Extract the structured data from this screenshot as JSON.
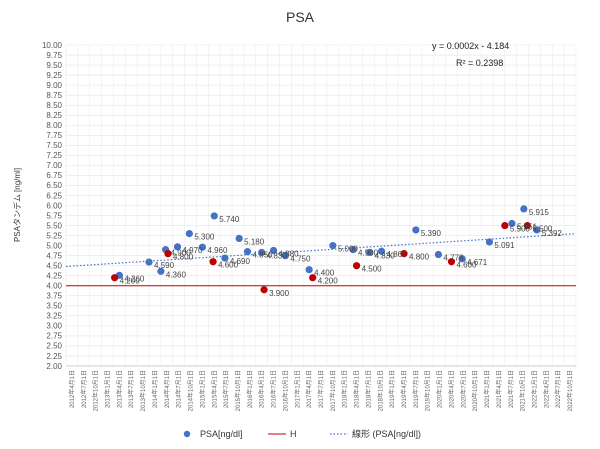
{
  "chart_data": {
    "type": "scatter",
    "title": "PSA",
    "ylabel": "PSAタンデム [ng/ml]",
    "xlabel": "",
    "ylim": [
      2.0,
      10.0
    ],
    "ytick_step": 0.25,
    "x_categories": [
      "2012年4月1日",
      "2012年7月1日",
      "2012年10月1日",
      "2013年1月1日",
      "2013年4月1日",
      "2013年7月1日",
      "2013年10月1日",
      "2014年1月1日",
      "2014年4月1日",
      "2014年7月1日",
      "2014年10月1日",
      "2015年1月1日",
      "2015年4月1日",
      "2015年7月1日",
      "2015年10月1日",
      "2016年1月1日",
      "2016年4月1日",
      "2016年7月1日",
      "2016年10月1日",
      "2017年1月1日",
      "2017年4月1日",
      "2017年7月1日",
      "2017年10月1日",
      "2018年1月1日",
      "2018年4月1日",
      "2018年7月1日",
      "2018年10月1日",
      "2019年1月1日",
      "2019年4月1日",
      "2019年7月1日",
      "2019年10月1日",
      "2020年1月1日",
      "2020年4月1日",
      "2020年7月1日",
      "2020年10月1日",
      "2021年1月1日",
      "2021年4月1日",
      "2021年7月1日",
      "2021年10月1日",
      "2022年1月1日",
      "2022年4月1日",
      "2022年7月1日",
      "2022年10月1日"
    ],
    "series": [
      {
        "name": "PSA[ng/dl]",
        "color": "#4472C4",
        "points": [
          {
            "x": 4.0,
            "y": 4.26,
            "label": "4.260"
          },
          {
            "x": 6.5,
            "y": 4.59,
            "label": "4.590"
          },
          {
            "x": 7.5,
            "y": 4.36,
            "label": "4.360"
          },
          {
            "x": 7.9,
            "y": 4.9,
            "label": "4.900"
          },
          {
            "x": 8.9,
            "y": 4.97,
            "label": "4.970"
          },
          {
            "x": 9.9,
            "y": 5.3,
            "label": "5.300"
          },
          {
            "x": 11.0,
            "y": 4.96,
            "label": "4.960"
          },
          {
            "x": 12.0,
            "y": 5.74,
            "label": "5.740"
          },
          {
            "x": 12.9,
            "y": 4.69,
            "label": "4.690"
          },
          {
            "x": 14.1,
            "y": 5.18,
            "label": "5.180"
          },
          {
            "x": 14.8,
            "y": 4.85,
            "label": "4.850"
          },
          {
            "x": 16.0,
            "y": 4.83,
            "label": "4.830"
          },
          {
            "x": 17.0,
            "y": 4.88,
            "label": "4.880"
          },
          {
            "x": 18.0,
            "y": 4.75,
            "label": "4.750"
          },
          {
            "x": 20.0,
            "y": 4.4,
            "label": "4.400"
          },
          {
            "x": 22.0,
            "y": 5.0,
            "label": "5.000"
          },
          {
            "x": 23.7,
            "y": 4.9,
            "label": "4.900"
          },
          {
            "x": 25.1,
            "y": 4.83,
            "label": "4.830"
          },
          {
            "x": 26.1,
            "y": 4.86,
            "label": "4.860"
          },
          {
            "x": 29.0,
            "y": 5.39,
            "label": "5.390"
          },
          {
            "x": 30.9,
            "y": 4.778,
            "label": "4.778"
          },
          {
            "x": 32.9,
            "y": 4.671,
            "label": "4.671"
          },
          {
            "x": 35.2,
            "y": 5.091,
            "label": "5.091"
          },
          {
            "x": 37.1,
            "y": 5.551,
            "label": "5.551"
          },
          {
            "x": 38.1,
            "y": 5.915,
            "label": "5.915"
          },
          {
            "x": 39.2,
            "y": 5.392,
            "label": "5.392"
          }
        ]
      },
      {
        "name": "H",
        "color": "#C00000",
        "points": [
          {
            "x": 3.6,
            "y": 4.2,
            "label": "4.200"
          },
          {
            "x": 8.1,
            "y": 4.8,
            "label": "4.800"
          },
          {
            "x": 11.9,
            "y": 4.6,
            "label": "4.600"
          },
          {
            "x": 16.2,
            "y": 3.9,
            "label": "3.900"
          },
          {
            "x": 20.3,
            "y": 4.2,
            "label": "4.200"
          },
          {
            "x": 24.0,
            "y": 4.5,
            "label": "4.500"
          },
          {
            "x": 28.0,
            "y": 4.8,
            "label": "4.800"
          },
          {
            "x": 32.0,
            "y": 4.6,
            "label": "4.600"
          },
          {
            "x": 36.5,
            "y": 5.5,
            "label": "5.500"
          },
          {
            "x": 38.4,
            "y": 5.5,
            "label": "5.500"
          }
        ]
      }
    ],
    "reference_line": {
      "y": 4.0,
      "color": "#C00000"
    },
    "trendline": {
      "name": "線形 (PSA[ng/dl])",
      "color": "#4472C4",
      "style": "dotted",
      "y_start": 4.48,
      "y_end": 5.3
    },
    "equation": "y = 0.0002x - 4.184",
    "r_squared": "R² = 0.2398",
    "legend": [
      {
        "name": "PSA[ng/dl]",
        "kind": "marker",
        "color": "#4472C4"
      },
      {
        "name": "H",
        "kind": "line",
        "color": "#C00000"
      },
      {
        "name": "線形 (PSA[ng/dl])",
        "kind": "dotted-line",
        "color": "#4472C4"
      }
    ],
    "legend_position": "bottom",
    "grid": true
  }
}
